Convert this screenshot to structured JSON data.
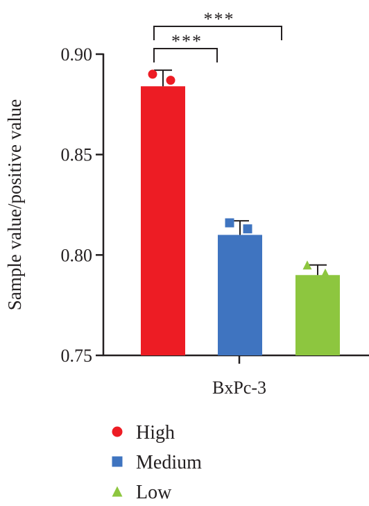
{
  "chart_data": {
    "type": "bar",
    "title": "",
    "xlabel": "",
    "ylabel": "Sample value/positive value",
    "ylim": [
      0.75,
      0.9
    ],
    "yticks": [
      "0.75",
      "0.80",
      "0.85",
      "0.90"
    ],
    "categories": [
      "BxPc-3"
    ],
    "grid": false,
    "legend_position": "bottom",
    "series": [
      {
        "name": "High",
        "value": 0.884,
        "error": 0.008,
        "points": [
          0.89,
          0.887
        ],
        "color": "#ed1c24",
        "marker": "circle"
      },
      {
        "name": "Medium",
        "value": 0.81,
        "error": 0.007,
        "points": [
          0.816,
          0.813
        ],
        "color": "#3f74c0",
        "marker": "square"
      },
      {
        "name": "Low",
        "value": 0.79,
        "error": 0.005,
        "points": [
          0.795,
          0.791
        ],
        "color": "#8dc63f",
        "marker": "triangle"
      }
    ],
    "significance": [
      {
        "from": "High",
        "to": "Medium",
        "label": "***"
      },
      {
        "from": "High",
        "to": "Low",
        "label": "***"
      }
    ]
  }
}
